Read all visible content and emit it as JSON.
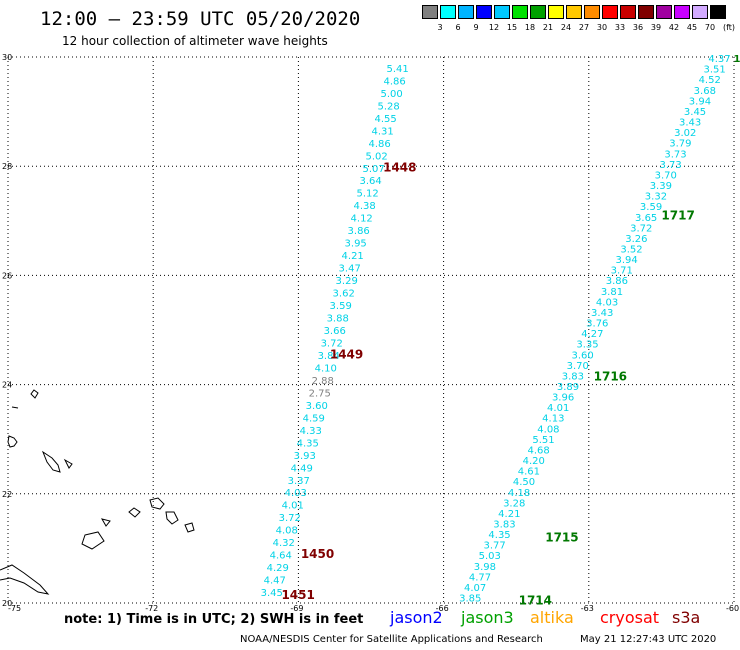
{
  "header": {
    "title": "12:00 – 23:59 UTC 05/20/2020",
    "subtitle": "12 hour collection of altimeter wave heights"
  },
  "legend": {
    "colors": [
      "#808080",
      "#00ffff",
      "#00b4ff",
      "#0000ff",
      "#00c8ff",
      "#00e100",
      "#00a000",
      "#ffff00",
      "#ffc800",
      "#ff8c00",
      "#ff0000",
      "#c80000",
      "#800000",
      "#a000a0",
      "#c800ff",
      "#d2aaff",
      "#000000"
    ],
    "labels": [
      "3",
      "6",
      "9",
      "12",
      "15",
      "18",
      "21",
      "24",
      "27",
      "30",
      "33",
      "36",
      "39",
      "42",
      "45",
      "70"
    ],
    "unit": "(ft)"
  },
  "map": {
    "lon_ticks": [
      "-75",
      "-72",
      "-69",
      "-66",
      "-63",
      "-60"
    ],
    "lat_ticks": [
      "20",
      "22",
      "24",
      "26",
      "28",
      "30"
    ],
    "lon_range": [
      -75,
      -60
    ],
    "lat_range": [
      20,
      30
    ],
    "grid": "dotted",
    "colors": {
      "cyan": "#00d2e6",
      "grey": "#808080",
      "maroon": "#800000",
      "green": "#007800",
      "coast": "#000000"
    }
  },
  "tracks": [
    {
      "id": "west",
      "lon_top": -66.95,
      "lat_top": 29.8,
      "lon_bottom": -69.55,
      "lat_bottom": 20.2,
      "values": [
        "5.41",
        "4.86",
        "5.00",
        "5.28",
        "4.55",
        "4.31",
        "4.86",
        "5.02",
        "5.07",
        "3.64",
        "5.12",
        "4.38",
        "4.12",
        "3.86",
        "3.95",
        "4.21",
        "3.47",
        "3.29",
        "3.62",
        "3.59",
        "3.88",
        "3.66",
        "3.72",
        "3.84",
        "4.10",
        "2.88",
        "2.75",
        "3.60",
        "4.59",
        "4.33",
        "4.35",
        "3.93",
        "4.49",
        "3.37",
        "4.03",
        "4.01",
        "3.72",
        "4.08",
        "4.32",
        "4.64",
        "4.29",
        "4.47",
        "3.45"
      ],
      "grey_values": [
        "2.88",
        "2.75"
      ]
    },
    {
      "id": "east",
      "lon_top": -60.3,
      "lat_top": 29.98,
      "lon_bottom": -65.45,
      "lat_bottom": 20.1,
      "values": [
        "4.37",
        "3.51",
        "4.52",
        "3.68",
        "3.94",
        "3.45",
        "3.43",
        "3.02",
        "3.79",
        "3.73",
        "3.73",
        "3.70",
        "3.39",
        "3.32",
        "3.59",
        "3.65",
        "3.72",
        "3.26",
        "3.52",
        "3.94",
        "3.71",
        "3.86",
        "3.81",
        "4.03",
        "3.43",
        "3.76",
        "4.27",
        "3.35",
        "3.60",
        "3.70",
        "3.83",
        "3.89",
        "3.96",
        "4.01",
        "4.13",
        "4.08",
        "5.51",
        "4.68",
        "4.20",
        "4.61",
        "4.50",
        "4.18",
        "3.28",
        "4.21",
        "3.83",
        "4.35",
        "3.77",
        "5.03",
        "3.98",
        "4.77",
        "4.07",
        "3.85"
      ],
      "end_label": "1"
    }
  ],
  "times": [
    {
      "text": "1448",
      "lon": -67.25,
      "lat": 27.98,
      "color": "maroon"
    },
    {
      "text": "1449",
      "lon": -68.35,
      "lat": 24.55,
      "color": "maroon"
    },
    {
      "text": "1450",
      "lon": -68.95,
      "lat": 20.9,
      "color": "maroon"
    },
    {
      "text": "1451",
      "lon": -69.35,
      "lat": 20.15,
      "color": "maroon"
    },
    {
      "text": "1717",
      "lon": -61.5,
      "lat": 27.1,
      "color": "green"
    },
    {
      "text": "1716",
      "lon": -62.9,
      "lat": 24.15,
      "color": "green"
    },
    {
      "text": "1715",
      "lon": -63.9,
      "lat": 21.2,
      "color": "green"
    },
    {
      "text": "1714",
      "lon": -64.45,
      "lat": 20.05,
      "color": "green"
    }
  ],
  "footer": {
    "note": "note: 1) Time is in UTC; 2) SWH is in feet",
    "satellites": [
      {
        "name": "jason2",
        "color": "#0000ff"
      },
      {
        "name": "jason3",
        "color": "#00a000"
      },
      {
        "name": "altika",
        "color": "#ffa500"
      },
      {
        "name": "cryosat",
        "color": "#ff0000"
      },
      {
        "name": "s3a",
        "color": "#800000"
      }
    ],
    "credit": "NOAA/NESDIS Center for Satellite Applications and Research",
    "timestamp": "May 21 12:27:43 UTC 2020"
  }
}
